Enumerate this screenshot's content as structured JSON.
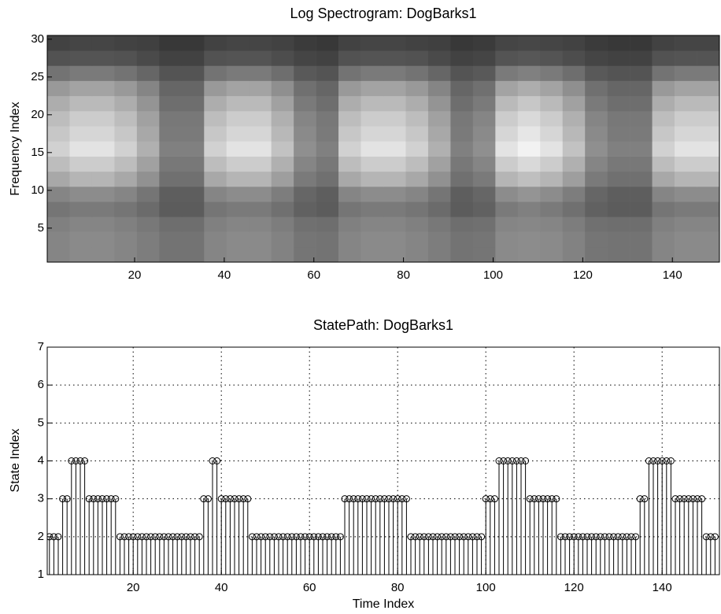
{
  "chart_data": [
    {
      "type": "heatmap",
      "title": "Log Spectrogram: DogBarks1",
      "ylabel": "Frequency Index",
      "xlim": [
        0.5,
        150.5
      ],
      "ylim": [
        0.5,
        30.5
      ],
      "xticks": [
        20,
        40,
        60,
        80,
        100,
        120,
        140
      ],
      "yticks": [
        5,
        10,
        15,
        20,
        25,
        30
      ],
      "x": [
        3,
        8,
        13,
        18,
        23,
        28,
        33,
        38,
        43,
        48,
        53,
        58,
        63,
        68,
        73,
        78,
        83,
        88,
        93,
        98,
        103,
        108,
        113,
        118,
        123,
        128,
        133,
        138,
        143,
        148
      ],
      "y": [
        1.5,
        3.5,
        5.5,
        7.5,
        9.5,
        11.5,
        13.5,
        15.5,
        17.5,
        19.5,
        21.5,
        23.5,
        25.5,
        27.5,
        29.5
      ],
      "z": [
        [
          0.52,
          0.54,
          0.54,
          0.52,
          0.49,
          0.45,
          0.45,
          0.52,
          0.54,
          0.54,
          0.51,
          0.46,
          0.45,
          0.52,
          0.54,
          0.54,
          0.52,
          0.49,
          0.45,
          0.46,
          0.54,
          0.55,
          0.54,
          0.51,
          0.46,
          0.45,
          0.45,
          0.52,
          0.54,
          0.54
        ],
        [
          0.52,
          0.54,
          0.54,
          0.52,
          0.49,
          0.45,
          0.45,
          0.52,
          0.54,
          0.54,
          0.51,
          0.46,
          0.45,
          0.52,
          0.54,
          0.54,
          0.52,
          0.49,
          0.45,
          0.46,
          0.54,
          0.55,
          0.54,
          0.51,
          0.46,
          0.45,
          0.45,
          0.52,
          0.54,
          0.54
        ],
        [
          0.5,
          0.52,
          0.52,
          0.5,
          0.47,
          0.43,
          0.43,
          0.5,
          0.52,
          0.52,
          0.49,
          0.44,
          0.43,
          0.5,
          0.52,
          0.52,
          0.5,
          0.47,
          0.43,
          0.44,
          0.52,
          0.53,
          0.52,
          0.49,
          0.44,
          0.43,
          0.43,
          0.5,
          0.52,
          0.52
        ],
        [
          0.46,
          0.48,
          0.48,
          0.46,
          0.42,
          0.36,
          0.36,
          0.46,
          0.48,
          0.48,
          0.44,
          0.38,
          0.36,
          0.46,
          0.48,
          0.48,
          0.46,
          0.42,
          0.36,
          0.38,
          0.48,
          0.5,
          0.48,
          0.44,
          0.38,
          0.36,
          0.36,
          0.46,
          0.48,
          0.48
        ],
        [
          0.52,
          0.55,
          0.55,
          0.52,
          0.46,
          0.37,
          0.37,
          0.52,
          0.55,
          0.55,
          0.49,
          0.4,
          0.37,
          0.52,
          0.55,
          0.55,
          0.52,
          0.46,
          0.37,
          0.4,
          0.55,
          0.58,
          0.55,
          0.49,
          0.4,
          0.37,
          0.37,
          0.52,
          0.55,
          0.55
        ],
        [
          0.66,
          0.71,
          0.71,
          0.66,
          0.57,
          0.44,
          0.44,
          0.66,
          0.71,
          0.71,
          0.62,
          0.48,
          0.44,
          0.66,
          0.71,
          0.71,
          0.66,
          0.57,
          0.44,
          0.48,
          0.71,
          0.75,
          0.71,
          0.62,
          0.48,
          0.44,
          0.44,
          0.66,
          0.71,
          0.71
        ],
        [
          0.74,
          0.8,
          0.8,
          0.74,
          0.63,
          0.47,
          0.47,
          0.74,
          0.8,
          0.8,
          0.69,
          0.52,
          0.47,
          0.74,
          0.8,
          0.8,
          0.74,
          0.63,
          0.47,
          0.52,
          0.8,
          0.85,
          0.8,
          0.69,
          0.52,
          0.47,
          0.47,
          0.74,
          0.8,
          0.8
        ],
        [
          0.82,
          0.89,
          0.89,
          0.82,
          0.69,
          0.5,
          0.5,
          0.82,
          0.89,
          0.89,
          0.76,
          0.56,
          0.5,
          0.82,
          0.89,
          0.89,
          0.82,
          0.69,
          0.5,
          0.56,
          0.89,
          0.95,
          0.89,
          0.76,
          0.56,
          0.5,
          0.5,
          0.82,
          0.89,
          0.89
        ],
        [
          0.78,
          0.84,
          0.84,
          0.78,
          0.66,
          0.48,
          0.48,
          0.78,
          0.84,
          0.84,
          0.72,
          0.54,
          0.48,
          0.78,
          0.84,
          0.84,
          0.78,
          0.66,
          0.48,
          0.54,
          0.84,
          0.9,
          0.84,
          0.72,
          0.54,
          0.48,
          0.48,
          0.78,
          0.84,
          0.84
        ],
        [
          0.74,
          0.8,
          0.8,
          0.74,
          0.63,
          0.47,
          0.47,
          0.74,
          0.8,
          0.8,
          0.69,
          0.52,
          0.47,
          0.74,
          0.8,
          0.8,
          0.74,
          0.63,
          0.47,
          0.52,
          0.8,
          0.85,
          0.8,
          0.69,
          0.52,
          0.47,
          0.47,
          0.74,
          0.8,
          0.8
        ],
        [
          0.68,
          0.73,
          0.73,
          0.68,
          0.58,
          0.43,
          0.43,
          0.68,
          0.73,
          0.73,
          0.63,
          0.48,
          0.43,
          0.68,
          0.73,
          0.73,
          0.68,
          0.58,
          0.43,
          0.48,
          0.73,
          0.78,
          0.73,
          0.63,
          0.48,
          0.43,
          0.43,
          0.68,
          0.73,
          0.73
        ],
        [
          0.6,
          0.64,
          0.64,
          0.6,
          0.52,
          0.4,
          0.4,
          0.6,
          0.64,
          0.64,
          0.56,
          0.44,
          0.4,
          0.6,
          0.64,
          0.64,
          0.6,
          0.52,
          0.4,
          0.44,
          0.64,
          0.68,
          0.64,
          0.56,
          0.44,
          0.4,
          0.4,
          0.6,
          0.64,
          0.64
        ],
        [
          0.45,
          0.48,
          0.48,
          0.45,
          0.4,
          0.33,
          0.33,
          0.45,
          0.48,
          0.48,
          0.43,
          0.35,
          0.33,
          0.45,
          0.48,
          0.48,
          0.45,
          0.4,
          0.33,
          0.35,
          0.48,
          0.5,
          0.48,
          0.43,
          0.35,
          0.33,
          0.33,
          0.45,
          0.48,
          0.48
        ],
        [
          0.32,
          0.33,
          0.33,
          0.32,
          0.29,
          0.26,
          0.26,
          0.32,
          0.33,
          0.33,
          0.3,
          0.27,
          0.26,
          0.32,
          0.33,
          0.33,
          0.32,
          0.29,
          0.26,
          0.27,
          0.33,
          0.34,
          0.33,
          0.3,
          0.27,
          0.26,
          0.26,
          0.32,
          0.33,
          0.33
        ],
        [
          0.26,
          0.27,
          0.27,
          0.26,
          0.25,
          0.22,
          0.22,
          0.26,
          0.27,
          0.27,
          0.26,
          0.23,
          0.22,
          0.26,
          0.27,
          0.27,
          0.26,
          0.25,
          0.22,
          0.23,
          0.27,
          0.28,
          0.27,
          0.26,
          0.23,
          0.22,
          0.22,
          0.26,
          0.27,
          0.27
        ]
      ]
    },
    {
      "type": "stem",
      "title": "StatePath: DogBarks1",
      "xlabel": "Time Index",
      "ylabel": "State Index",
      "xlim": [
        0.5,
        153
      ],
      "ylim": [
        1,
        7
      ],
      "grid": true,
      "color": "#000000",
      "xticks": [
        20,
        40,
        60,
        80,
        100,
        120,
        140
      ],
      "yticks": [
        1,
        2,
        3,
        4,
        5,
        6,
        7
      ],
      "x": [
        1,
        2,
        3,
        4,
        5,
        6,
        7,
        8,
        9,
        10,
        11,
        12,
        13,
        14,
        15,
        16,
        17,
        18,
        19,
        20,
        21,
        22,
        23,
        24,
        25,
        26,
        27,
        28,
        29,
        30,
        31,
        32,
        33,
        34,
        35,
        36,
        37,
        38,
        39,
        40,
        41,
        42,
        43,
        44,
        45,
        46,
        47,
        48,
        49,
        50,
        51,
        52,
        53,
        54,
        55,
        56,
        57,
        58,
        59,
        60,
        61,
        62,
        63,
        64,
        65,
        66,
        67,
        68,
        69,
        70,
        71,
        72,
        73,
        74,
        75,
        76,
        77,
        78,
        79,
        80,
        81,
        82,
        83,
        84,
        85,
        86,
        87,
        88,
        89,
        90,
        91,
        92,
        93,
        94,
        95,
        96,
        97,
        98,
        99,
        100,
        101,
        102,
        103,
        104,
        105,
        106,
        107,
        108,
        109,
        110,
        111,
        112,
        113,
        114,
        115,
        116,
        117,
        118,
        119,
        120,
        121,
        122,
        123,
        124,
        125,
        126,
        127,
        128,
        129,
        130,
        131,
        132,
        133,
        134,
        135,
        136,
        137,
        138,
        139,
        140,
        141,
        142,
        143,
        144,
        145,
        146,
        147,
        148,
        149,
        150,
        151,
        152
      ],
      "values": [
        2,
        2,
        2,
        3,
        3,
        4,
        4,
        4,
        4,
        3,
        3,
        3,
        3,
        3,
        3,
        3,
        2,
        2,
        2,
        2,
        2,
        2,
        2,
        2,
        2,
        2,
        2,
        2,
        2,
        2,
        2,
        2,
        2,
        2,
        2,
        3,
        3,
        4,
        4,
        3,
        3,
        3,
        3,
        3,
        3,
        3,
        2,
        2,
        2,
        2,
        2,
        2,
        2,
        2,
        2,
        2,
        2,
        2,
        2,
        2,
        2,
        2,
        2,
        2,
        2,
        2,
        2,
        3,
        3,
        3,
        3,
        3,
        3,
        3,
        3,
        3,
        3,
        3,
        3,
        3,
        3,
        3,
        2,
        2,
        2,
        2,
        2,
        2,
        2,
        2,
        2,
        2,
        2,
        2,
        2,
        2,
        2,
        2,
        2,
        3,
        3,
        3,
        4,
        4,
        4,
        4,
        4,
        4,
        4,
        3,
        3,
        3,
        3,
        3,
        3,
        3,
        2,
        2,
        2,
        2,
        2,
        2,
        2,
        2,
        2,
        2,
        2,
        2,
        2,
        2,
        2,
        2,
        2,
        2,
        3,
        3,
        4,
        4,
        4,
        4,
        4,
        4,
        3,
        3,
        3,
        3,
        3,
        3,
        3,
        2,
        2,
        2
      ]
    }
  ]
}
